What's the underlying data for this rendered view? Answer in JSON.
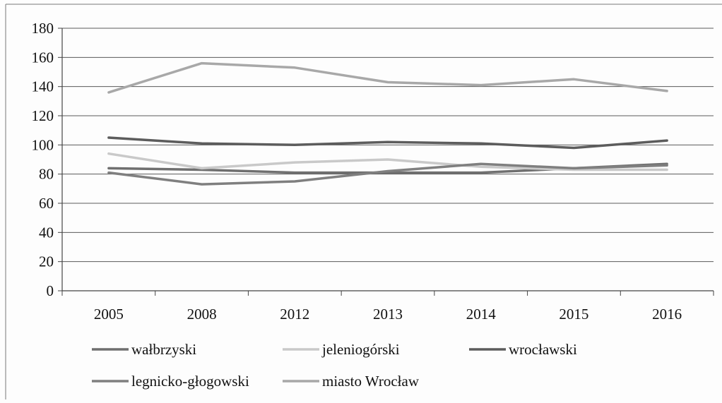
{
  "chart_data": {
    "type": "line",
    "categories": [
      "2005",
      "2008",
      "2012",
      "2013",
      "2014",
      "2015",
      "2016"
    ],
    "ylim": [
      0,
      180
    ],
    "yticks": [
      0,
      20,
      40,
      60,
      80,
      100,
      120,
      140,
      160,
      180
    ],
    "grid": true,
    "legend_position": "bottom",
    "series": [
      {
        "name": "wałbrzyski",
        "color": "#6f6f6f",
        "values": [
          84,
          83,
          81,
          81,
          81,
          84,
          87
        ]
      },
      {
        "name": "jeleniogórski",
        "color": "#c9c9c9",
        "values": [
          94,
          84,
          88,
          90,
          85,
          83,
          83
        ]
      },
      {
        "name": "wrocławski",
        "color": "#5c5c5c",
        "values": [
          105,
          101,
          100,
          102,
          101,
          98,
          103
        ]
      },
      {
        "name": "legnicko-głogowski",
        "color": "#7f7f7f",
        "values": [
          81,
          73,
          75,
          82,
          87,
          84,
          86
        ]
      },
      {
        "name": "miasto Wrocław",
        "color": "#a8a8a8",
        "values": [
          136,
          156,
          153,
          143,
          141,
          145,
          137
        ]
      }
    ]
  }
}
